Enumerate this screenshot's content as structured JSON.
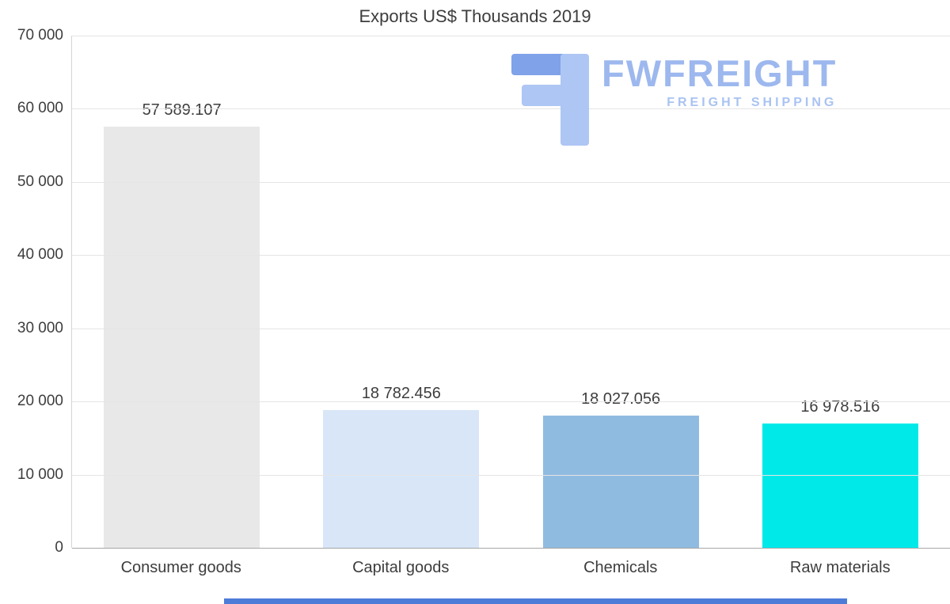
{
  "chart_data": {
    "type": "bar",
    "title": "Exports US$ Thousands 2019",
    "categories": [
      "Consumer goods",
      "Capital goods",
      "Chemicals",
      "Raw materials"
    ],
    "values": [
      57589.107,
      18782.456,
      18027.056,
      16978.516
    ],
    "value_labels": [
      "57 589.107",
      "18 782.456",
      "18 027.056",
      "16 978.516"
    ],
    "bar_colors": [
      "#e8e8e8",
      "#d8e6f8",
      "#90bbe1",
      "#00e9e9"
    ],
    "xlabel": "",
    "ylabel": "",
    "ylim": [
      0,
      70000
    ],
    "ytick_labels": [
      "70 000",
      "60 000",
      "50 000",
      "40 000",
      "30 000",
      "20 000",
      "10 000",
      "0"
    ],
    "grid": true,
    "legend": "none"
  },
  "logo": {
    "name": "FWFREIGHT",
    "subtitle": "FREIGHT SHIPPING",
    "brand_color": "#9db8ee",
    "glyph_dark_color": "#7fa2e9",
    "glyph_light_color": "#aec6f3"
  },
  "decor": {
    "bottom_bar_color": "#4d7cd8"
  }
}
